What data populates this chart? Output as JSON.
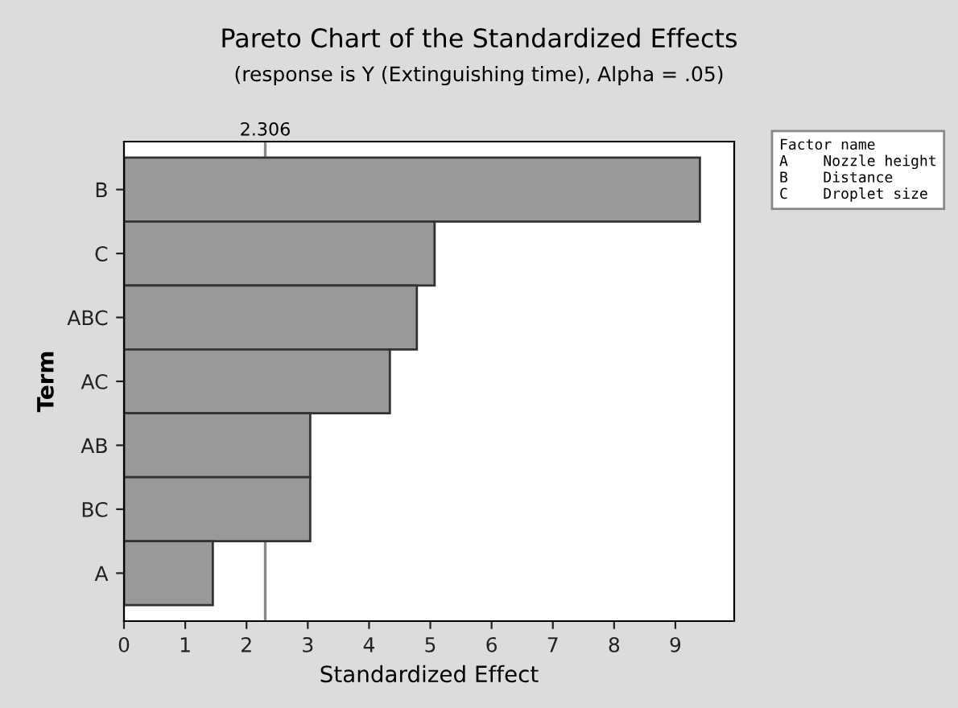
{
  "chart_data": {
    "type": "bar",
    "orientation": "horizontal",
    "title": "Pareto Chart of the Standardized Effects",
    "subtitle": "(response is Y (Extinguishing time), Alpha = .05)",
    "xlabel": "Standardized Effect",
    "ylabel": "Term",
    "categories": [
      "B",
      "C",
      "ABC",
      "AC",
      "AB",
      "BC",
      "A"
    ],
    "values": [
      9.4,
      5.07,
      4.78,
      4.34,
      3.04,
      3.04,
      1.45
    ],
    "color": "#999999",
    "xlim": [
      0,
      9.96
    ],
    "xticks": [
      0,
      1,
      2,
      3,
      4,
      5,
      6,
      7,
      8,
      9
    ],
    "ref_lines": [
      {
        "axis": "x",
        "value": 2.306,
        "label": "2.306",
        "color": "#888888"
      }
    ],
    "annotations": [
      "Factor name",
      "A    Nozzle height",
      "B    Distance",
      "C    Droplet size"
    ],
    "grid": false,
    "legend": false
  }
}
